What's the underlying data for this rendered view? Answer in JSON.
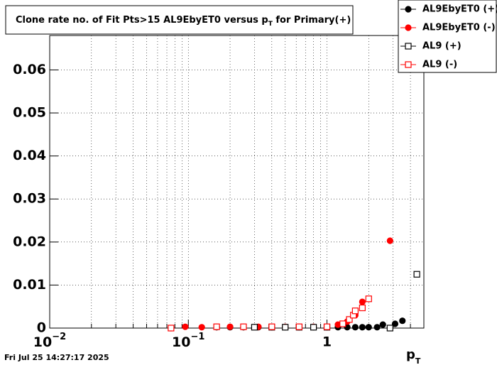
{
  "chart_data": {
    "type": "scatter",
    "title": "Clone rate no. of Fit Pts>15 AL9EbyET0 versus p",
    "title_sub": "T",
    "title_end": " for Primary(+)",
    "x_label": "p",
    "x_label_sub": "T",
    "footer": "Fri Jul 25 14:27:17 2025",
    "x_log": true,
    "grid": true,
    "legend": "top-right",
    "xlim": [
      0.01,
      5
    ],
    "ylim": [
      0,
      0.068
    ],
    "xticks": [
      {
        "value": 0.01,
        "label": "10",
        "exponent": "−2"
      },
      {
        "value": 0.1,
        "label": "10",
        "exponent": "−1"
      },
      1
    ],
    "xminorticks": [
      0.02,
      0.03,
      0.04,
      0.05,
      0.06,
      0.07,
      0.08,
      0.09,
      0.2,
      0.3,
      0.4,
      0.5,
      0.6,
      0.7,
      0.8,
      0.9,
      2,
      3,
      4
    ],
    "yticks": [
      0,
      0.01,
      0.02,
      0.03,
      0.04,
      0.05,
      0.06
    ],
    "series": [
      {
        "name": "AL9EbyET0 (+)",
        "color": "#000000",
        "marker": "circle",
        "filled": true,
        "x": [
          0.16,
          0.2,
          0.25,
          0.32,
          0.4,
          0.5,
          0.63,
          0.8,
          1.0,
          1.2,
          1.4,
          1.6,
          1.8,
          2.0,
          2.3,
          2.53,
          3.1,
          3.5
        ],
        "values": [
          0.0002,
          0.0002,
          0.0002,
          0.0002,
          0.0002,
          0.0002,
          0.0002,
          0.0002,
          0.0002,
          0.0002,
          0.0002,
          0.0002,
          0.0002,
          0.0002,
          0.0002,
          0.0008,
          0.001,
          0.0017
        ]
      },
      {
        "name": "AL9EbyET0 (-)",
        "color": "#ff0000",
        "marker": "circle",
        "filled": true,
        "x": [
          0.075,
          0.095,
          0.125,
          0.16,
          0.2,
          0.25,
          0.32,
          0.4,
          0.5,
          0.63,
          0.8,
          1.0,
          1.2,
          1.4,
          1.6,
          1.8,
          2.85
        ],
        "values": [
          0,
          0.0003,
          0.0002,
          0.0003,
          0.0003,
          0.0003,
          0.0003,
          0.0003,
          0.0003,
          0.0003,
          0.0003,
          0.0003,
          0.0008,
          0.0015,
          0.003,
          0.0061,
          0.0203
        ]
      },
      {
        "name": "AL9 (+)",
        "color": "#000000",
        "marker": "square",
        "filled": false,
        "x": [
          0.3,
          0.4,
          0.5,
          0.63,
          0.8,
          1.0,
          2.85,
          4.45
        ],
        "values": [
          0.0002,
          0.0002,
          0.0002,
          0.0002,
          0.0002,
          0.0002,
          0,
          0.0125
        ]
      },
      {
        "name": "AL9 (-)",
        "color": "#ff0000",
        "marker": "square",
        "filled": false,
        "x": [
          0.075,
          0.16,
          0.25,
          0.4,
          0.63,
          1.0,
          1.3,
          1.45,
          1.55,
          1.6,
          1.8,
          2.0
        ],
        "values": [
          0,
          0.0003,
          0.0003,
          0.0003,
          0.0003,
          0.0003,
          0.001,
          0.002,
          0.003,
          0.004,
          0.0047,
          0.0068
        ]
      }
    ]
  }
}
